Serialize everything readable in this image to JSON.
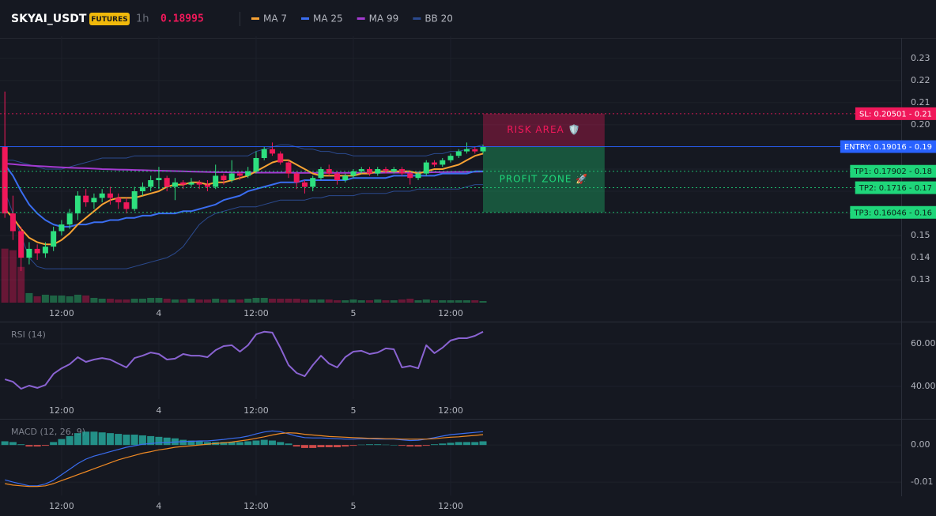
{
  "header": {
    "symbol": "SKYAI_USDT",
    "badge": "FUTURES",
    "interval": "1h",
    "price": 0.18995
  },
  "chart_data": [
    {
      "type": "candlestick",
      "xlim": [
        -0.6,
        110.6
      ],
      "xticks": [
        {
          "value": 7,
          "label": "12:00"
        },
        {
          "value": 19,
          "label": "4"
        },
        {
          "value": 31,
          "label": "12:00"
        },
        {
          "value": 43,
          "label": "5"
        },
        {
          "value": 55,
          "label": "12:00"
        }
      ],
      "ylim": [
        0.119,
        0.2385
      ],
      "yticks": [
        0.13,
        0.14,
        0.15,
        0.16,
        0.17,
        0.18,
        0.19,
        {
          "value": 0.2,
          "label": "0.20"
        },
        0.21,
        0.22,
        0.23
      ],
      "grid": true,
      "up_color": "#2ee07f",
      "down_color": "#f0185a",
      "open": [
        0.19,
        0.16,
        0.152,
        0.14,
        0.144,
        0.142,
        0.145,
        0.152,
        0.155,
        0.16,
        0.168,
        0.165,
        0.167,
        0.169,
        0.167,
        0.165,
        0.162,
        0.17,
        0.172,
        0.175,
        0.176,
        0.172,
        0.174,
        0.173,
        0.174,
        0.173,
        0.172,
        0.177,
        0.175,
        0.178,
        0.177,
        0.179,
        0.185,
        0.189,
        0.187,
        0.183,
        0.178,
        0.174,
        0.172,
        0.176,
        0.18,
        0.178,
        0.175,
        0.177,
        0.179,
        0.18,
        0.178,
        0.18,
        0.179,
        0.18,
        0.178,
        0.176,
        0.178,
        0.183,
        0.182,
        0.184,
        0.186,
        0.188,
        0.189,
        0.188
      ],
      "high": [
        0.215,
        0.168,
        0.154,
        0.147,
        0.146,
        0.147,
        0.154,
        0.157,
        0.162,
        0.17,
        0.171,
        0.169,
        0.171,
        0.172,
        0.169,
        0.167,
        0.172,
        0.174,
        0.177,
        0.181,
        0.177,
        0.176,
        0.175,
        0.176,
        0.175,
        0.175,
        0.182,
        0.178,
        0.184,
        0.179,
        0.181,
        0.188,
        0.19,
        0.192,
        0.188,
        0.184,
        0.179,
        0.175,
        0.177,
        0.181,
        0.182,
        0.179,
        0.178,
        0.18,
        0.181,
        0.181,
        0.181,
        0.181,
        0.181,
        0.181,
        0.179,
        0.179,
        0.184,
        0.184,
        0.185,
        0.187,
        0.189,
        0.192,
        0.19,
        0.191
      ],
      "low": [
        0.158,
        0.148,
        0.134,
        0.137,
        0.139,
        0.14,
        0.143,
        0.15,
        0.153,
        0.157,
        0.163,
        0.162,
        0.165,
        0.164,
        0.162,
        0.16,
        0.161,
        0.168,
        0.17,
        0.171,
        0.17,
        0.166,
        0.171,
        0.172,
        0.171,
        0.17,
        0.171,
        0.173,
        0.174,
        0.175,
        0.176,
        0.178,
        0.184,
        0.186,
        0.182,
        0.176,
        0.171,
        0.169,
        0.17,
        0.175,
        0.177,
        0.173,
        0.174,
        0.176,
        0.178,
        0.177,
        0.177,
        0.178,
        0.178,
        0.177,
        0.173,
        0.175,
        0.177,
        0.181,
        0.181,
        0.183,
        0.185,
        0.187,
        0.187,
        0.187
      ],
      "close": [
        0.16,
        0.152,
        0.14,
        0.144,
        0.142,
        0.145,
        0.152,
        0.155,
        0.16,
        0.168,
        0.165,
        0.167,
        0.169,
        0.167,
        0.165,
        0.162,
        0.17,
        0.172,
        0.175,
        0.176,
        0.172,
        0.174,
        0.173,
        0.174,
        0.173,
        0.172,
        0.177,
        0.175,
        0.178,
        0.177,
        0.179,
        0.185,
        0.189,
        0.187,
        0.183,
        0.178,
        0.174,
        0.172,
        0.176,
        0.18,
        0.178,
        0.175,
        0.177,
        0.179,
        0.18,
        0.178,
        0.18,
        0.179,
        0.18,
        0.178,
        0.176,
        0.178,
        0.183,
        0.182,
        0.184,
        0.186,
        0.188,
        0.189,
        0.188,
        0.19
      ],
      "volume": {
        "vlim": [
          0,
          100
        ],
        "values": [
          68,
          66,
          45,
          12,
          8,
          10,
          9,
          9,
          8,
          10,
          9,
          6,
          5,
          5,
          4,
          4,
          5,
          5,
          6,
          6,
          5,
          4,
          4,
          5,
          4,
          4,
          5,
          4,
          4,
          4,
          5,
          6,
          6,
          5,
          5,
          5,
          5,
          4,
          4,
          4,
          4,
          3,
          3,
          4,
          3,
          3,
          4,
          3,
          3,
          4,
          5,
          3,
          4,
          3,
          3,
          3,
          3,
          3,
          3,
          2
        ]
      },
      "series": [
        {
          "name": "MA 7",
          "color": "#f7a233",
          "values": [
            0.162,
            0.158,
            0.153,
            0.149,
            0.147,
            0.146,
            0.146,
            0.148,
            0.151,
            0.155,
            0.158,
            0.161,
            0.164,
            0.166,
            0.167,
            0.167,
            0.167,
            0.168,
            0.169,
            0.17,
            0.172,
            0.173,
            0.173,
            0.174,
            0.174,
            0.173,
            0.174,
            0.174,
            0.175,
            0.176,
            0.177,
            0.179,
            0.181,
            0.183,
            0.184,
            0.184,
            0.182,
            0.18,
            0.178,
            0.177,
            0.177,
            0.177,
            0.177,
            0.177,
            0.178,
            0.178,
            0.179,
            0.179,
            0.179,
            0.179,
            0.179,
            0.178,
            0.179,
            0.18,
            0.18,
            0.181,
            0.182,
            0.184,
            0.186,
            0.187
          ]
        },
        {
          "name": "MA 25",
          "color": "#3a6df0",
          "values": [
            0.182,
            0.177,
            0.17,
            0.164,
            0.16,
            0.157,
            0.155,
            0.154,
            0.154,
            0.155,
            0.155,
            0.156,
            0.156,
            0.157,
            0.157,
            0.158,
            0.158,
            0.159,
            0.159,
            0.16,
            0.16,
            0.16,
            0.161,
            0.161,
            0.162,
            0.163,
            0.164,
            0.166,
            0.167,
            0.168,
            0.17,
            0.171,
            0.172,
            0.173,
            0.174,
            0.174,
            0.174,
            0.175,
            0.175,
            0.175,
            0.175,
            0.175,
            0.175,
            0.176,
            0.176,
            0.176,
            0.176,
            0.176,
            0.177,
            0.177,
            0.177,
            0.177,
            0.177,
            0.177,
            0.178,
            0.178,
            0.178,
            0.178,
            0.179,
            0.179
          ]
        },
        {
          "name": "MA 99",
          "color": "#a43ad1",
          "values": [
            0.1825,
            0.1822,
            0.1819,
            0.1816,
            0.1814,
            0.1812,
            0.181,
            0.1808,
            0.1806,
            0.1805,
            0.1804,
            0.1802,
            0.18,
            0.1799,
            0.1798,
            0.1797,
            0.1796,
            0.1795,
            0.1794,
            0.1793,
            0.1792,
            0.1791,
            0.179,
            0.1789,
            0.1788,
            0.1787,
            0.1786,
            0.1786,
            0.1785,
            0.1785,
            0.1785,
            0.1784,
            0.1784,
            0.1784,
            0.1784,
            0.1784,
            0.1783,
            0.1783,
            0.1783,
            0.1783,
            0.1783,
            0.1783,
            0.1783,
            0.1783,
            0.1783,
            0.1783,
            0.1783,
            0.1784,
            0.1784,
            0.1784,
            0.1784,
            0.1785,
            0.1785,
            0.1786,
            0.1786,
            0.1787,
            0.1787,
            0.1788,
            0.1788,
            0.1789
          ]
        }
      ],
      "bands": [
        {
          "name": "BB 20",
          "color": "#2b4a8f",
          "upper": [
            0.184,
            0.184,
            0.183,
            0.182,
            0.181,
            0.18,
            0.18,
            0.18,
            0.181,
            0.182,
            0.183,
            0.184,
            0.185,
            0.185,
            0.185,
            0.185,
            0.186,
            0.186,
            0.186,
            0.186,
            0.186,
            0.186,
            0.186,
            0.186,
            0.186,
            0.186,
            0.186,
            0.186,
            0.186,
            0.186,
            0.186,
            0.188,
            0.189,
            0.19,
            0.191,
            0.191,
            0.19,
            0.189,
            0.189,
            0.188,
            0.188,
            0.187,
            0.187,
            0.186,
            0.186,
            0.186,
            0.186,
            0.186,
            0.186,
            0.186,
            0.186,
            0.186,
            0.186,
            0.187,
            0.187,
            0.188,
            0.188,
            0.189,
            0.19,
            0.191
          ],
          "lower": [
            0.17,
            0.16,
            0.15,
            0.14,
            0.136,
            0.135,
            0.135,
            0.135,
            0.135,
            0.135,
            0.135,
            0.135,
            0.135,
            0.135,
            0.135,
            0.135,
            0.136,
            0.137,
            0.138,
            0.139,
            0.14,
            0.142,
            0.145,
            0.15,
            0.155,
            0.158,
            0.16,
            0.161,
            0.162,
            0.163,
            0.163,
            0.163,
            0.164,
            0.165,
            0.166,
            0.166,
            0.166,
            0.166,
            0.167,
            0.167,
            0.168,
            0.168,
            0.168,
            0.168,
            0.169,
            0.169,
            0.169,
            0.169,
            0.17,
            0.17,
            0.17,
            0.171,
            0.171,
            0.171,
            0.171,
            0.171,
            0.171,
            0.172,
            0.173,
            0.173
          ]
        }
      ],
      "levels": [
        {
          "label": "SL: 0.20501 - 0.21",
          "value": 0.20501,
          "color": "#f0185a",
          "text_color": "#ffffff",
          "style": "dotted"
        },
        {
          "label": "ENTRY: 0.19016 - 0.19",
          "value": 0.19016,
          "color": "#2962ff",
          "text_color": "#ffffff",
          "style": "solid"
        },
        {
          "label": "TP1: 0.17902 - 0.18",
          "value": 0.17902,
          "color": "#1fd67a",
          "text_color": "#0b2318",
          "style": "dotted"
        },
        {
          "label": "TP2: 0.1716 - 0.17",
          "value": 0.1716,
          "color": "#1fd67a",
          "text_color": "#0b2318",
          "style": "dotted"
        },
        {
          "label": "TP3: 0.16046 - 0.16",
          "value": 0.16046,
          "color": "#1fd67a",
          "text_color": "#0b2318",
          "style": "dotted"
        }
      ],
      "zones": [
        {
          "label": "RISK AREA 🛡️",
          "from": 0.19016,
          "to": 0.20501,
          "x0": 59,
          "x1": 74,
          "color": "#f0185a"
        },
        {
          "label": "PROFIT ZONE 🚀",
          "from": 0.16046,
          "to": 0.19016,
          "x0": 59,
          "x1": 74,
          "color": "#1fd67a"
        }
      ]
    },
    {
      "type": "line",
      "title": "RSI (14)",
      "xlim": [
        -0.6,
        110.6
      ],
      "xticks": [
        {
          "value": 7,
          "label": "12:00"
        },
        {
          "value": 19,
          "label": "4"
        },
        {
          "value": 31,
          "label": "12:00"
        },
        {
          "value": 43,
          "label": "5"
        },
        {
          "value": 55,
          "label": "12:00"
        }
      ],
      "ylim": [
        34.1,
        68.5
      ],
      "yticks": [
        {
          "value": 40,
          "label": "40.00"
        },
        {
          "value": 60,
          "label": "60.00"
        }
      ],
      "grid": true,
      "series": [
        {
          "color": "#8a63d2",
          "values": [
            43.3,
            42.2,
            38.9,
            40.4,
            39.3,
            40.7,
            45.9,
            48.5,
            50.4,
            53.7,
            51.5,
            52.6,
            53.3,
            52.6,
            50.7,
            48.9,
            53.3,
            54.4,
            55.9,
            55.2,
            52.6,
            53.0,
            55.2,
            54.4,
            54.4,
            53.7,
            57.0,
            58.9,
            59.3,
            56.3,
            59.3,
            64.4,
            65.6,
            65.2,
            58.1,
            50.0,
            46.3,
            44.8,
            50.0,
            54.4,
            50.7,
            48.9,
            53.7,
            56.3,
            56.7,
            55.2,
            55.9,
            57.8,
            57.4,
            48.9,
            49.6,
            48.5,
            59.3,
            55.6,
            58.1,
            61.5,
            62.6,
            62.6,
            63.7,
            65.6
          ]
        }
      ]
    },
    {
      "type": "macd",
      "title": "MACD (12, 26, 9)",
      "xlim": [
        -0.6,
        110.6
      ],
      "xticks": [
        {
          "value": 7,
          "label": "12:00"
        },
        {
          "value": 19,
          "label": "4"
        },
        {
          "value": 31,
          "label": "12:00"
        },
        {
          "value": 43,
          "label": "5"
        },
        {
          "value": 55,
          "label": "12:00"
        }
      ],
      "ylim": [
        -0.0136,
        0.006
      ],
      "yticks": [
        {
          "value": 0,
          "label": "0.00"
        },
        -0.01
      ],
      "grid": true,
      "histogram": {
        "up_color": "#26a69a",
        "down_color": "#ef5350",
        "values": [
          0.001,
          0.0008,
          0.0002,
          -0.0004,
          -0.0004,
          -0.0002,
          0.0008,
          0.0016,
          0.0024,
          0.0032,
          0.0036,
          0.0036,
          0.0034,
          0.0032,
          0.003,
          0.0028,
          0.0028,
          0.0026,
          0.0024,
          0.0022,
          0.002,
          0.0018,
          0.0014,
          0.0012,
          0.001,
          0.0008,
          0.0008,
          0.0008,
          0.0008,
          0.0008,
          0.001,
          0.0012,
          0.0014,
          0.0012,
          0.0008,
          0.0004,
          -0.0004,
          -0.0008,
          -0.0008,
          -0.0006,
          -0.0006,
          -0.0006,
          -0.0004,
          -0.0002,
          0.0001,
          0.0002,
          0.0002,
          0.0001,
          0,
          -0.0002,
          -0.0004,
          -0.0004,
          -0.0002,
          0.0002,
          0.0004,
          0.0006,
          0.0008,
          0.0008,
          0.0008,
          0.001
        ]
      },
      "series": [
        {
          "color": "#3a6df0",
          "values": [
            -0.0094,
            -0.01,
            -0.0105,
            -0.011,
            -0.011,
            -0.0105,
            -0.0095,
            -0.008,
            -0.0065,
            -0.005,
            -0.0038,
            -0.003,
            -0.0024,
            -0.0018,
            -0.0012,
            -0.0006,
            -0.0002,
            0.0002,
            0.0004,
            0.0006,
            0.0007,
            0.0008,
            0.0009,
            0.001,
            0.0011,
            0.0011,
            0.0013,
            0.0015,
            0.0018,
            0.002,
            0.0024,
            0.003,
            0.0035,
            0.0038,
            0.0036,
            0.003,
            0.0024,
            0.002,
            0.0019,
            0.0019,
            0.0018,
            0.0017,
            0.0016,
            0.0016,
            0.0017,
            0.0017,
            0.0016,
            0.0016,
            0.0016,
            0.0014,
            0.0012,
            0.0013,
            0.0016,
            0.002,
            0.0024,
            0.0028,
            0.003,
            0.0032,
            0.0034,
            0.0036
          ]
        },
        {
          "color": "#f08a24",
          "values": [
            -0.0104,
            -0.0108,
            -0.011,
            -0.0112,
            -0.0112,
            -0.011,
            -0.0104,
            -0.0096,
            -0.0088,
            -0.008,
            -0.0072,
            -0.0064,
            -0.0056,
            -0.0048,
            -0.004,
            -0.0034,
            -0.0028,
            -0.0022,
            -0.0018,
            -0.0013,
            -0.001,
            -0.0006,
            -0.0004,
            -0.0002,
            0,
            0.0002,
            0.0004,
            0.0006,
            0.0008,
            0.0011,
            0.0014,
            0.0018,
            0.0022,
            0.0027,
            0.0031,
            0.0033,
            0.0032,
            0.0029,
            0.0027,
            0.0025,
            0.0023,
            0.0022,
            0.0021,
            0.002,
            0.0019,
            0.0018,
            0.0018,
            0.0017,
            0.0017,
            0.0016,
            0.0016,
            0.0016,
            0.0016,
            0.0017,
            0.0019,
            0.0021,
            0.0022,
            0.0024,
            0.0026,
            0.0028
          ]
        }
      ]
    }
  ]
}
